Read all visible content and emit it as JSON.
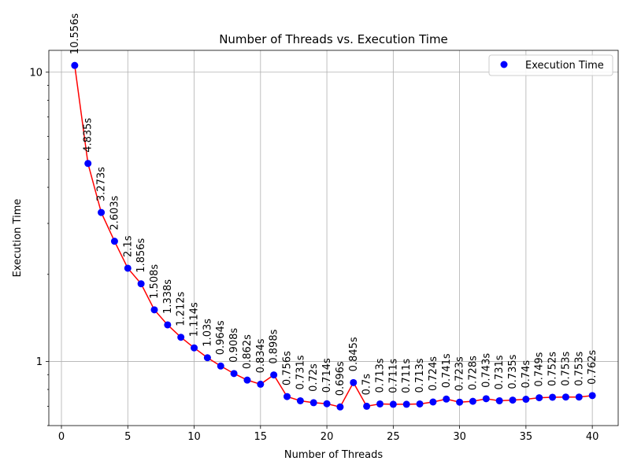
{
  "chart_data": {
    "type": "scatter",
    "title": "Number of Threads vs. Execution Time",
    "xlabel": "Number of Threads",
    "ylabel": "Execution Time",
    "xlim": [
      -0.95,
      41.95
    ],
    "ylim": [
      0.6,
      11.9
    ],
    "yscale": "log",
    "grid": true,
    "legend_position": "top-right",
    "x_ticks": [
      0,
      5,
      10,
      15,
      20,
      25,
      30,
      35,
      40
    ],
    "y_ticks": [
      1,
      10
    ],
    "colors": {
      "points": "#0000ff",
      "line": "#ff0000"
    },
    "series": [
      {
        "name": "Execution Time",
        "x": [
          1,
          2,
          3,
          4,
          5,
          6,
          7,
          8,
          9,
          10,
          11,
          12,
          13,
          14,
          15,
          16,
          17,
          18,
          19,
          20,
          21,
          22,
          23,
          24,
          25,
          26,
          27,
          28,
          29,
          30,
          31,
          32,
          33,
          34,
          35,
          36,
          37,
          38,
          39,
          40
        ],
        "y": [
          10.556,
          4.835,
          3.273,
          2.603,
          2.1,
          1.856,
          1.508,
          1.338,
          1.212,
          1.114,
          1.03,
          0.964,
          0.908,
          0.862,
          0.834,
          0.898,
          0.756,
          0.731,
          0.72,
          0.714,
          0.696,
          0.845,
          0.7,
          0.713,
          0.711,
          0.711,
          0.713,
          0.724,
          0.741,
          0.723,
          0.728,
          0.743,
          0.731,
          0.735,
          0.74,
          0.749,
          0.752,
          0.753,
          0.753,
          0.762
        ],
        "labels": [
          "10.556s",
          "4.835s",
          "3.273s",
          "2.603s",
          "2.1s",
          "1.856s",
          "1.508s",
          "1.338s",
          "1.212s",
          "1.114s",
          "1.03s",
          "0.964s",
          "0.908s",
          "0.862s",
          "0.834s",
          "0.898s",
          "0.756s",
          "0.731s",
          "0.72s",
          "0.714s",
          "0.696s",
          "0.845s",
          "0.7s",
          "0.713s",
          "0.711s",
          "0.711s",
          "0.713s",
          "0.724s",
          "0.741s",
          "0.723s",
          "0.728s",
          "0.743s",
          "0.731s",
          "0.735s",
          "0.74s",
          "0.749s",
          "0.752s",
          "0.753s",
          "0.753s",
          "0.762s"
        ]
      }
    ]
  }
}
